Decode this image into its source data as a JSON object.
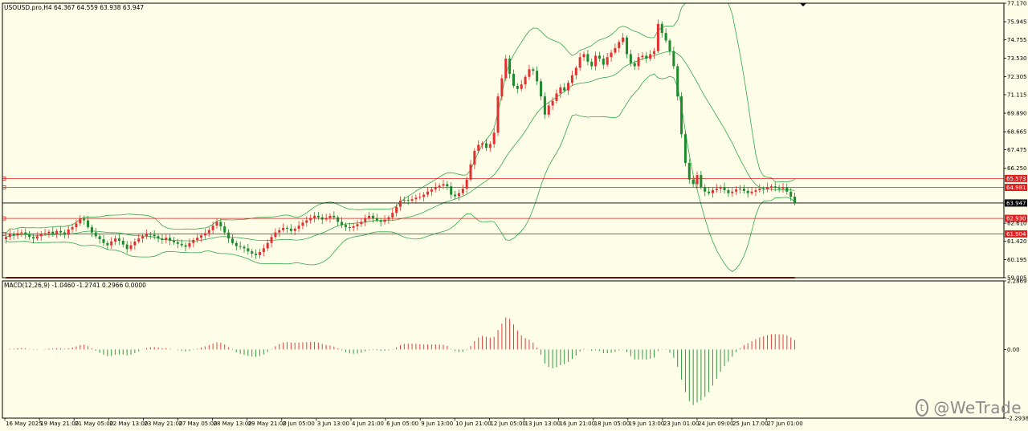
{
  "header": {
    "symbol_info": "USOUSD.pro,H4  64.367 64.559 63.938 63.947",
    "macd_info": "MACD(12,26,9) -1.0460 -1.2741 0.2966 0.0000"
  },
  "watermark": "@WeTrade",
  "colors": {
    "bull": "#e23030",
    "bear": "#1e8a2e",
    "bands": "#2fa84a",
    "hline": "#e02020",
    "current": "#000000",
    "macd_line": "#2a3cd8",
    "signal_line": "#e01818",
    "hist_pos": "#e04040",
    "hist_neg": "#2f9a40"
  },
  "chart_data": [
    {
      "type": "candlestick",
      "title": "USOUSD.pro, H4",
      "ylim": [
        59.005,
        77.17
      ],
      "y_ticks": [
        "77.170",
        "75.945",
        "74.755",
        "73.530",
        "72.305",
        "71.115",
        "69.890",
        "68.665",
        "67.475",
        "66.250",
        "62.610",
        "61.420",
        "60.195",
        "59.005"
      ],
      "x_ticks": [
        "16 May 2025",
        "19 May 21:00",
        "21 May 05:00",
        "22 May 13:00",
        "23 May 21:00",
        "27 May 05:00",
        "28 May 13:00",
        "29 May 21:00",
        "2 Jun 05:00",
        "3 Jun 13:00",
        "4 Jun 21:00",
        "6 Jun 05:00",
        "9 Jun 13:00",
        "10 Jun 21:00",
        "12 Jun 05:00",
        "13 Jun 13:00",
        "16 Jun 21:00",
        "18 Jun 05:00",
        "19 Jun 13:00",
        "23 Jun 01:00",
        "24 Jun 09:00",
        "25 Jun 17:00",
        "27 Jun 01:00"
      ],
      "horizontal_levels": [
        {
          "label": "65.573",
          "value": 65.573
        },
        {
          "label": "64.981",
          "value": 64.981
        },
        {
          "label": "62.930",
          "value": 62.93
        },
        {
          "label": "61.904",
          "value": 61.904
        }
      ],
      "current_price": {
        "label": "63.947",
        "value": 63.947
      },
      "closes": [
        61.7,
        61.9,
        61.8,
        61.95,
        62.0,
        61.85,
        61.7,
        61.6,
        61.75,
        61.9,
        61.95,
        62.05,
        61.9,
        62.1,
        62.0,
        61.85,
        62.2,
        62.35,
        62.6,
        62.9,
        62.8,
        62.35,
        62.0,
        61.75,
        61.55,
        61.3,
        61.15,
        61.4,
        61.6,
        61.45,
        61.2,
        60.9,
        61.15,
        61.4,
        61.6,
        61.75,
        61.9,
        61.85,
        61.75,
        61.6,
        61.5,
        61.65,
        61.45,
        61.35,
        61.25,
        61.15,
        61.05,
        61.3,
        61.5,
        61.65,
        61.8,
        61.95,
        62.15,
        62.45,
        62.7,
        62.4,
        62.0,
        61.6,
        61.3,
        61.1,
        61.05,
        60.95,
        60.75,
        60.6,
        60.5,
        60.7,
        60.95,
        61.3,
        61.7,
        62.0,
        62.15,
        62.3,
        62.25,
        62.1,
        62.25,
        62.45,
        62.65,
        62.8,
        62.95,
        63.1,
        63.0,
        62.85,
        62.95,
        63.1,
        63.0,
        62.7,
        62.5,
        62.35,
        62.3,
        62.4,
        62.55,
        62.7,
        62.95,
        63.1,
        62.95,
        62.8,
        62.7,
        62.85,
        63.0,
        63.3,
        63.7,
        64.1,
        64.15,
        64.1,
        64.2,
        64.3,
        64.35,
        64.5,
        64.7,
        64.85,
        65.0,
        65.1,
        65.2,
        65.05,
        64.5,
        64.4,
        64.6,
        64.9,
        65.5,
        66.5,
        67.4,
        67.8,
        67.9,
        67.6,
        67.85,
        68.6,
        71.0,
        72.2,
        73.5,
        72.5,
        71.7,
        71.5,
        71.8,
        72.3,
        72.8,
        72.7,
        72.0,
        71.0,
        69.8,
        70.4,
        70.7,
        71.2,
        71.6,
        71.4,
        71.9,
        72.4,
        72.9,
        73.6,
        73.8,
        73.3,
        73.0,
        73.7,
        73.5,
        73.1,
        73.6,
        73.9,
        74.2,
        74.6,
        74.9,
        73.8,
        73.2,
        73.0,
        73.6,
        73.7,
        73.5,
        73.8,
        74.0,
        75.8,
        75.2,
        74.7,
        74.0,
        73.0,
        71.0,
        68.5,
        66.6,
        65.5,
        65.2,
        65.8,
        65.0,
        64.7,
        64.6,
        64.8,
        64.9,
        65.0,
        64.8,
        64.6,
        64.7,
        64.85,
        64.9,
        64.75,
        64.6,
        64.7,
        64.8,
        64.9,
        64.85,
        65.0,
        65.05,
        64.95,
        64.9,
        65.0,
        64.7,
        64.37,
        63.95
      ]
    },
    {
      "type": "line",
      "title": "MACD(12,26,9)",
      "ylim": [
        -2.2938,
        2.2869
      ],
      "y_ticks": [
        "2.2869",
        "0.00",
        "-2.2938"
      ],
      "series": [
        {
          "name": "MACD",
          "values": [
            -1.046
          ]
        },
        {
          "name": "Signal",
          "values": [
            -1.2741
          ]
        }
      ]
    }
  ]
}
